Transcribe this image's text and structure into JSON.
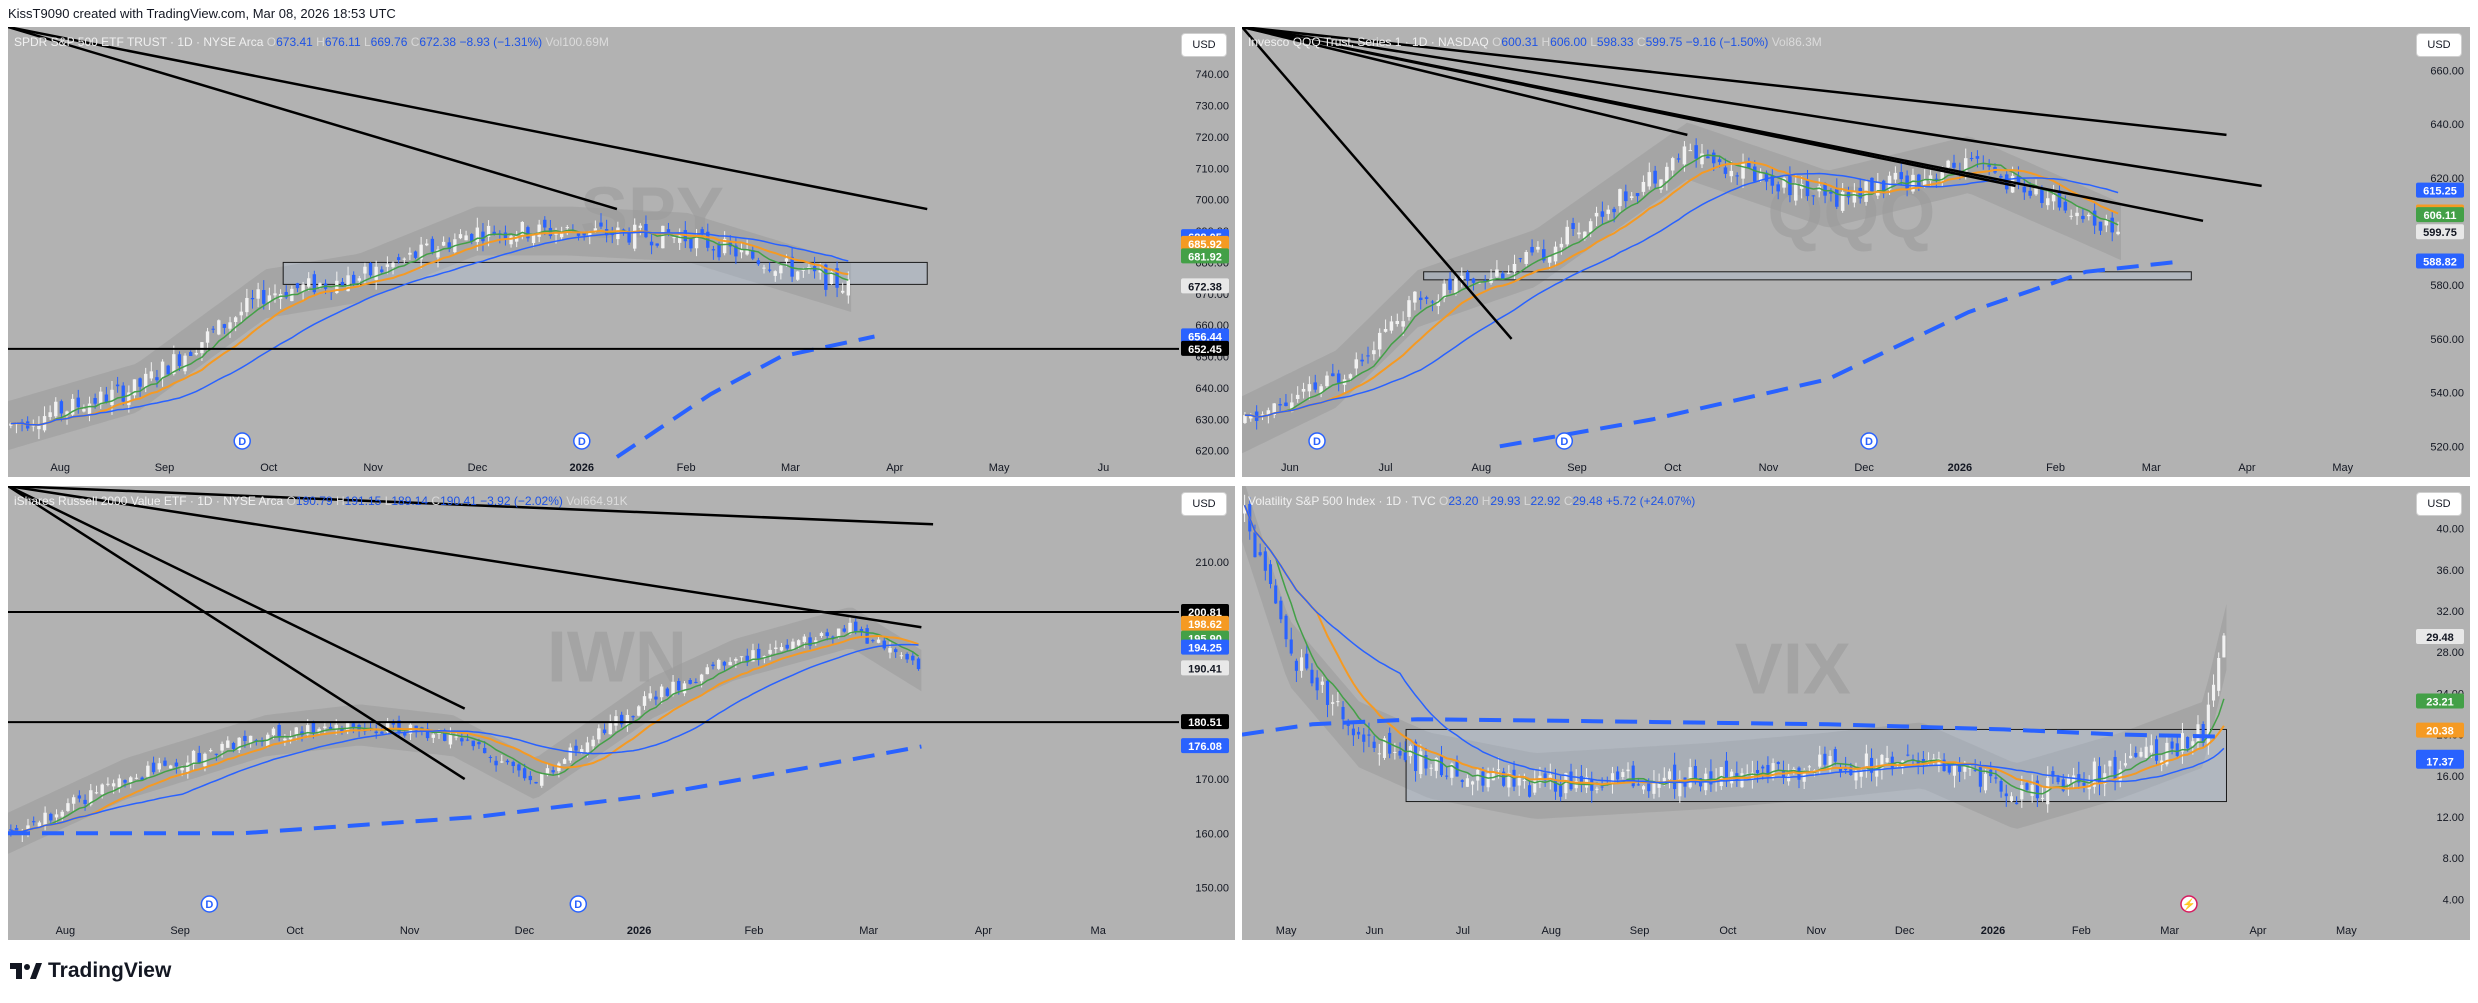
{
  "header": {
    "credit": "KissT9090 created with TradingView.com, Mar 08, 2026 18:53 UTC"
  },
  "footer": {
    "brand": "TradingView"
  },
  "colors": {
    "panel_bg": "#b2b2b2",
    "candle_up": "#f2f2f2",
    "candle_down": "#2962ff",
    "ma_fast": "#43a047",
    "ma_mid": "#f59a23",
    "ma_slow": "#2962ff",
    "ma_long": "#2962ff",
    "trendline": "#000000"
  },
  "panels": [
    {
      "id": "spy",
      "legend": {
        "name": "SPDR S&P 500 ETF TRUST · 1D · NYSE Arca",
        "o": "673.41",
        "h": "676.11",
        "l": "669.76",
        "c": "672.38",
        "chg": "−8.93 (−1.31%)",
        "vol": "100.69M"
      },
      "currency": "USD",
      "watermark": "SPY",
      "chart_data": {
        "type": "candlestick",
        "ylim": [
          618,
          748
        ],
        "y_ticks": [
          "740.00",
          "730.00",
          "720.00",
          "710.00",
          "700.00",
          "690.00",
          "680.00",
          "670.00",
          "660.00",
          "650.00",
          "640.00",
          "630.00",
          "620.00"
        ],
        "x_ticks": [
          "Aug",
          "Sep",
          "Oct",
          "Nov",
          "Dec",
          "2026",
          "Feb",
          "Mar",
          "Apr",
          "May",
          "Ju"
        ],
        "price_labels": [
          {
            "text": "688.05",
            "value": 688.05,
            "color": "#2962ff"
          },
          {
            "text": "685.92",
            "value": 685.92,
            "color": "#f59a23"
          },
          {
            "text": "681.92",
            "value": 681.92,
            "color": "#43a047"
          },
          {
            "text": "672.38",
            "value": 672.38,
            "color": "#e8e8e8"
          },
          {
            "text": "656.44",
            "value": 656.44,
            "color": "#2962ff"
          },
          {
            "text": "652.45",
            "value": 652.45,
            "color": "#000000"
          }
        ],
        "series": [
          {
            "name": "close",
            "x": [
              0,
              0.11,
              0.22,
              0.3,
              0.4,
              0.48,
              0.58,
              0.72
            ],
            "y": [
              628,
              640,
              670,
              675,
              690,
              690,
              688,
              672
            ]
          }
        ],
        "horizontal_lines": [
          652.45
        ],
        "events": [
          {
            "label": "D",
            "x": 0.2
          },
          {
            "label": "D",
            "x": 0.49
          }
        ]
      }
    },
    {
      "id": "qqq",
      "legend": {
        "name": "Invesco QQQ Trust, Series 1 · 1D · NASDAQ",
        "o": "600.31",
        "h": "606.00",
        "l": "598.33",
        "c": "599.75",
        "chg": "−9.16 (−1.50%)",
        "vol": "86.3M"
      },
      "currency": "USD",
      "watermark": "QQQ",
      "chart_data": {
        "type": "candlestick",
        "ylim": [
          516,
          668
        ],
        "y_ticks": [
          "660.00",
          "640.00",
          "620.00",
          "600.00",
          "580.00",
          "560.00",
          "540.00",
          "520.00"
        ],
        "x_ticks": [
          "Jun",
          "Jul",
          "Aug",
          "Sep",
          "Oct",
          "Nov",
          "Dec",
          "2026",
          "Feb",
          "Mar",
          "Apr",
          "May"
        ],
        "price_labels": [
          {
            "text": "615.25",
            "value": 615.25,
            "color": "#2962ff"
          },
          {
            "text": "607.10",
            "value": 607.1,
            "color": "#f59a23"
          },
          {
            "text": "606.11",
            "value": 606.11,
            "color": "#43a047"
          },
          {
            "text": "599.75",
            "value": 599.75,
            "color": "#e8e8e8"
          },
          {
            "text": "588.82",
            "value": 588.82,
            "color": "#2962ff"
          }
        ],
        "series": [
          {
            "name": "close",
            "x": [
              0,
              0.08,
              0.15,
              0.25,
              0.38,
              0.5,
              0.62,
              0.75
            ],
            "y": [
              528,
              545,
              575,
              590,
              630,
              612,
              625,
              600
            ]
          }
        ],
        "events": [
          {
            "label": "D",
            "x": 0.064
          },
          {
            "label": "D",
            "x": 0.275
          },
          {
            "label": "D",
            "x": 0.535
          }
        ]
      }
    },
    {
      "id": "iwn",
      "legend": {
        "name": "iShares Russell 2000 Value ETF · 1D · NYSE Arca",
        "o": "190.79",
        "h": "191.15",
        "l": "189.14",
        "c": "190.41",
        "chg": "−3.92 (−2.02%)",
        "vol": "664.91K"
      },
      "currency": "USD",
      "watermark": "IWN",
      "chart_data": {
        "type": "candlestick",
        "ylim": [
          144,
          220
        ],
        "y_ticks": [
          "210.00",
          "200.00",
          "190.00",
          "180.00",
          "170.00",
          "160.00",
          "150.00"
        ],
        "x_ticks": [
          "Aug",
          "Sep",
          "Oct",
          "Nov",
          "Dec",
          "2026",
          "Feb",
          "Mar",
          "Apr",
          "Ma"
        ],
        "price_labels": [
          {
            "text": "200.81",
            "value": 200.81,
            "color": "#000000"
          },
          {
            "text": "198.62",
            "value": 198.62,
            "color": "#f59a23"
          },
          {
            "text": "195.90",
            "value": 195.9,
            "color": "#43a047"
          },
          {
            "text": "194.25",
            "value": 194.25,
            "color": "#2962ff"
          },
          {
            "text": "190.41",
            "value": 190.41,
            "color": "#e8e8e8"
          },
          {
            "text": "180.51",
            "value": 180.51,
            "color": "#000000"
          },
          {
            "text": "176.08",
            "value": 176.08,
            "color": "#2962ff"
          }
        ],
        "series": [
          {
            "name": "close",
            "x": [
              0,
              0.1,
              0.22,
              0.3,
              0.38,
              0.45,
              0.55,
              0.62,
              0.72,
              0.78
            ],
            "y": [
              160,
              170,
              178,
              180,
              178,
              170,
              185,
              192,
              198,
              190
            ]
          }
        ],
        "horizontal_lines": [
          200.81,
          180.51
        ],
        "events": [
          {
            "label": "D",
            "x": 0.172
          },
          {
            "label": "D",
            "x": 0.487
          }
        ]
      }
    },
    {
      "id": "vix",
      "legend": {
        "name": "Volatility S&P 500 Index · 1D · TVC",
        "o": "23.20",
        "h": "29.93",
        "l": "22.92",
        "c": "29.48",
        "chg": "+5.72 (+24.07%)",
        "vol": ""
      },
      "currency": "USD",
      "watermark": "VIX",
      "chart_data": {
        "type": "candlestick",
        "ylim": [
          2,
          42
        ],
        "y_ticks": [
          "40.00",
          "36.00",
          "32.00",
          "28.00",
          "24.00",
          "20.00",
          "16.00",
          "12.00",
          "8.00",
          "4.00"
        ],
        "x_ticks": [
          "May",
          "Jun",
          "Jul",
          "Aug",
          "Sep",
          "Oct",
          "Nov",
          "Dec",
          "2026",
          "Feb",
          "Mar",
          "Apr",
          "May"
        ],
        "price_labels": [
          {
            "text": "29.48",
            "value": 29.48,
            "color": "#e8e8e8"
          },
          {
            "text": "23.21",
            "value": 23.21,
            "color": "#43a047"
          },
          {
            "text": "20.38",
            "value": 20.38,
            "color": "#f59a23"
          },
          {
            "text": "17.75",
            "value": 17.75,
            "color": "#2962ff"
          },
          {
            "text": "17.37",
            "value": 17.37,
            "color": "#2962ff"
          }
        ],
        "series": [
          {
            "name": "close",
            "x": [
              0,
              0.04,
              0.1,
              0.16,
              0.25,
              0.4,
              0.5,
              0.58,
              0.66,
              0.75,
              0.82,
              0.84
            ],
            "y": [
              42,
              28,
              20,
              17,
              15,
              16,
              17,
              18,
              14,
              17,
              20,
              29.5
            ]
          }
        ],
        "events": [
          {
            "label": "⚡",
            "x": 0.808
          }
        ]
      }
    }
  ]
}
